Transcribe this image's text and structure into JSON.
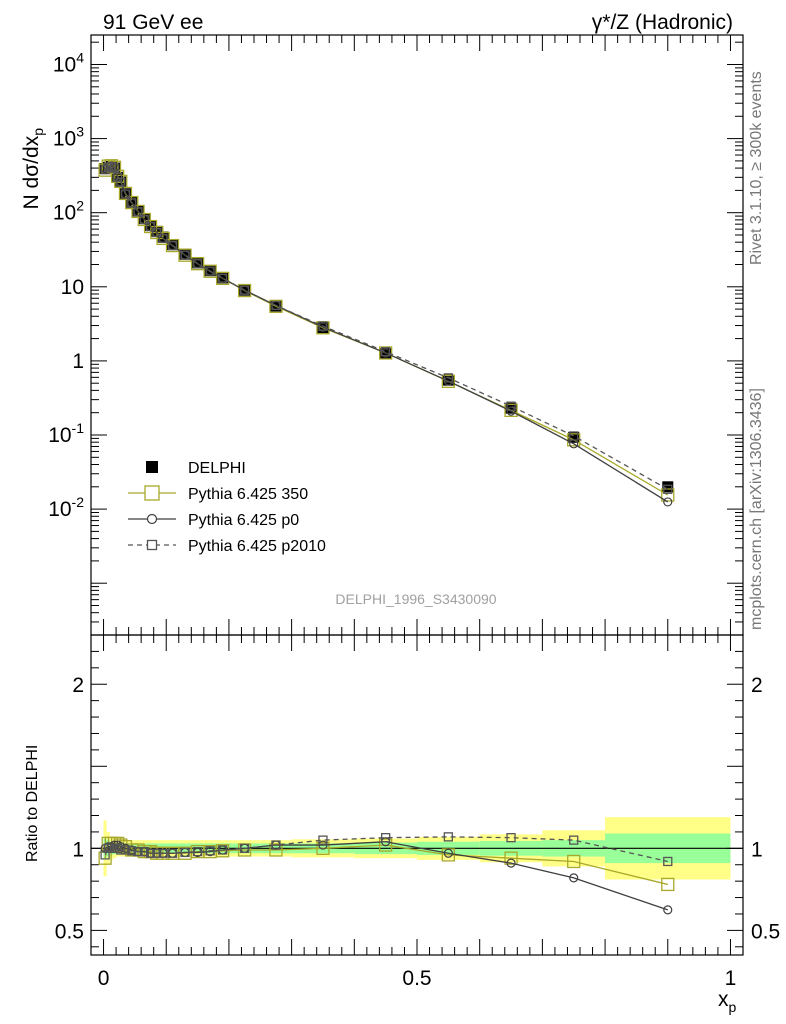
{
  "header": {
    "left_label": "91 GeV ee",
    "right_label": "γ*/Z (Hadronic)"
  },
  "side_text": {
    "rivet": "Rivet 3.1.10, ≥ 300k events",
    "mcplots": "mcplots.cern.ch [arXiv:1306.3436]"
  },
  "watermark": "DELPHI_1996_S3430090",
  "colors": {
    "data": "#000000",
    "py350": "#a8a82a",
    "p0": "#3f3f3f",
    "p2010": "#555555",
    "band_inner": "#99ff99",
    "band_outer": "#ffff88"
  },
  "chart_data": [
    {
      "type": "scatter",
      "title": "",
      "ylabel": "N dσ/dx_p",
      "ylabel_main": "N dσ/dx",
      "ylabel_sub": "p",
      "xlim": [
        -0.02,
        1.02
      ],
      "ylim": [
        0.0002,
        25000
      ],
      "log_y": true,
      "y_ticks": [
        "10^-2",
        "10^-1",
        "1",
        "10",
        "10^2",
        "10^3",
        "10^4"
      ],
      "legend_position": "middle-left",
      "x": [
        0.0025,
        0.0075,
        0.0125,
        0.0175,
        0.0225,
        0.0275,
        0.035,
        0.045,
        0.055,
        0.065,
        0.075,
        0.085,
        0.095,
        0.11,
        0.13,
        0.15,
        0.17,
        0.19,
        0.225,
        0.275,
        0.35,
        0.45,
        0.55,
        0.65,
        0.75,
        0.9
      ],
      "series": [
        {
          "name": "DELPHI",
          "values": [
            395,
            410,
            420,
            400,
            300,
            260,
            180,
            138,
            105,
            83,
            67,
            56,
            47,
            37,
            27.5,
            21,
            16.5,
            13.2,
            9.0,
            5.5,
            2.8,
            1.25,
            0.55,
            0.23,
            0.093,
            0.02
          ]
        },
        {
          "name": "Pythia 6.425 350",
          "values": [
            375,
            425,
            430,
            410,
            310,
            265,
            182,
            137,
            104,
            81,
            65,
            54,
            45,
            36,
            26.7,
            20.5,
            16.2,
            13.0,
            8.9,
            5.45,
            2.8,
            1.28,
            0.53,
            0.215,
            0.086,
            0.0155
          ]
        },
        {
          "name": "Pythia 6.425 p0",
          "values": [
            395,
            415,
            425,
            410,
            305,
            262,
            180,
            136,
            103,
            81,
            65,
            54,
            45,
            36,
            26.8,
            20.5,
            16.2,
            13.0,
            9.0,
            5.6,
            2.85,
            1.28,
            0.535,
            0.21,
            0.076,
            0.0125
          ]
        },
        {
          "name": "Pythia 6.425 p2010",
          "values": [
            380,
            410,
            420,
            400,
            300,
            258,
            178,
            136,
            103,
            81,
            65,
            54,
            45,
            36,
            26.8,
            20.6,
            16.3,
            13.1,
            9.0,
            5.6,
            2.95,
            1.33,
            0.59,
            0.245,
            0.097,
            0.0185
          ]
        }
      ]
    },
    {
      "type": "line",
      "title": "",
      "xlabel": "x_p",
      "xlabel_main": "x",
      "xlabel_sub": "p",
      "ylabel": "Ratio to DELPHI",
      "xlim": [
        -0.02,
        1.02
      ],
      "ylim": [
        0.35,
        2.3
      ],
      "x_ticks": [
        "0",
        "0.5",
        "1"
      ],
      "y_ticks": [
        "0.5",
        "1",
        "2"
      ],
      "x": [
        0.0025,
        0.0075,
        0.0125,
        0.0175,
        0.0225,
        0.0275,
        0.035,
        0.045,
        0.055,
        0.065,
        0.075,
        0.085,
        0.095,
        0.11,
        0.13,
        0.15,
        0.17,
        0.19,
        0.225,
        0.275,
        0.35,
        0.45,
        0.55,
        0.65,
        0.75,
        0.9
      ],
      "bins": [
        [
          0,
          0.005
        ],
        [
          0.005,
          0.01
        ],
        [
          0.01,
          0.015
        ],
        [
          0.015,
          0.02
        ],
        [
          0.02,
          0.025
        ],
        [
          0.025,
          0.03
        ],
        [
          0.03,
          0.04
        ],
        [
          0.04,
          0.05
        ],
        [
          0.05,
          0.06
        ],
        [
          0.06,
          0.07
        ],
        [
          0.07,
          0.08
        ],
        [
          0.08,
          0.09
        ],
        [
          0.09,
          0.1
        ],
        [
          0.1,
          0.12
        ],
        [
          0.12,
          0.14
        ],
        [
          0.14,
          0.16
        ],
        [
          0.16,
          0.18
        ],
        [
          0.18,
          0.2
        ],
        [
          0.2,
          0.25
        ],
        [
          0.25,
          0.3
        ],
        [
          0.3,
          0.4
        ],
        [
          0.4,
          0.5
        ],
        [
          0.5,
          0.6
        ],
        [
          0.6,
          0.7
        ],
        [
          0.7,
          0.8
        ],
        [
          0.8,
          1.0
        ]
      ],
      "band_inner": [
        0.06,
        0.05,
        0.04,
        0.035,
        0.03,
        0.03,
        0.03,
        0.03,
        0.03,
        0.03,
        0.03,
        0.03,
        0.03,
        0.03,
        0.03,
        0.03,
        0.03,
        0.03,
        0.03,
        0.03,
        0.03,
        0.035,
        0.04,
        0.045,
        0.05,
        0.09
      ],
      "band_outer": [
        0.17,
        0.1,
        0.07,
        0.06,
        0.05,
        0.05,
        0.05,
        0.05,
        0.05,
        0.05,
        0.05,
        0.05,
        0.05,
        0.05,
        0.05,
        0.05,
        0.05,
        0.05,
        0.05,
        0.05,
        0.055,
        0.06,
        0.07,
        0.085,
        0.11,
        0.19
      ],
      "series": [
        {
          "name": "Pythia 6.425 350",
          "values": [
            0.94,
            1.03,
            1.03,
            1.03,
            1.03,
            1.02,
            1.01,
            0.99,
            0.99,
            0.98,
            0.98,
            0.97,
            0.97,
            0.97,
            0.97,
            0.98,
            0.98,
            0.985,
            0.99,
            0.99,
            1.0,
            1.02,
            0.96,
            0.94,
            0.92,
            0.78
          ]
        },
        {
          "name": "Pythia 6.425 p0",
          "values": [
            1.0,
            1.01,
            1.01,
            1.02,
            1.02,
            1.01,
            1.0,
            0.99,
            0.98,
            0.98,
            0.97,
            0.97,
            0.97,
            0.97,
            0.975,
            0.975,
            0.98,
            0.99,
            1.0,
            1.02,
            1.02,
            1.04,
            0.97,
            0.91,
            0.82,
            0.625
          ]
        },
        {
          "name": "Pythia 6.425 p2010",
          "values": [
            0.96,
            1.0,
            1.0,
            1.0,
            1.0,
            0.99,
            0.99,
            0.985,
            0.98,
            0.98,
            0.97,
            0.97,
            0.97,
            0.97,
            0.975,
            0.98,
            0.985,
            0.99,
            1.0,
            1.02,
            1.05,
            1.065,
            1.07,
            1.065,
            1.05,
            0.92
          ]
        }
      ]
    }
  ]
}
